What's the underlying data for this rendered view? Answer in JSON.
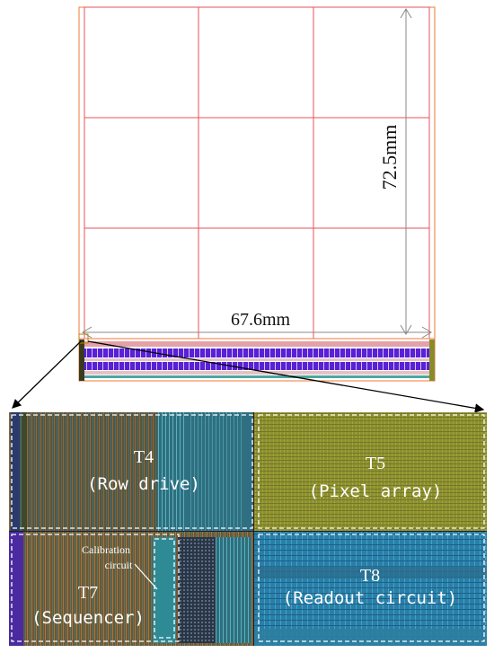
{
  "top_view": {
    "width_label": "67.6mm",
    "height_label": "72.5mm",
    "colors": {
      "grid": "#e8505b",
      "border": "#f07a3a",
      "bus_primary": "#5a1fd6",
      "bus_secondary": "#2a2ad0"
    }
  },
  "zoom_view": {
    "blocks": [
      {
        "id": "t4",
        "title": "T4",
        "subtitle": "(Row drive)"
      },
      {
        "id": "t5",
        "title": "T5",
        "subtitle": "(Pixel array)"
      },
      {
        "id": "t7",
        "title": "T7",
        "subtitle": "(Sequencer)"
      },
      {
        "id": "t8",
        "title": "T8",
        "subtitle": "(Readout circuit)"
      }
    ],
    "calibration_label_line1": "Calibration",
    "calibration_label_line2": "circuit",
    "colors": {
      "pixel_array": "#8f8f2e",
      "readout": "#2a7fa8",
      "row_drive": "#6b5b3a",
      "sequencer": "#7a5a3a",
      "box_border": "#ffffff"
    }
  }
}
